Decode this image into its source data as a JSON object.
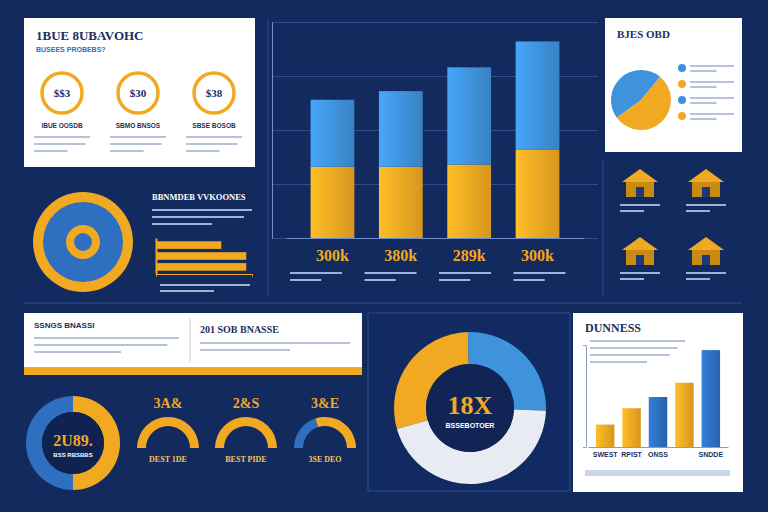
{
  "chart_data": [
    {
      "type": "bar",
      "stacked": true,
      "categories": [
        "300k",
        "380k",
        "289k",
        "300k"
      ],
      "series": [
        {
          "color": "#f2a922",
          "values": [
            33,
            33,
            34,
            41
          ]
        },
        {
          "color": "#3f93dd",
          "values": [
            31,
            35,
            45,
            50
          ]
        }
      ],
      "ylim": [
        0,
        100
      ],
      "yticks": [
        0,
        25,
        50,
        75,
        100
      ],
      "grid": true,
      "tick_labels": "x"
    },
    {
      "type": "bar",
      "orientation": "horizontal",
      "categories": [
        null,
        null,
        null
      ],
      "values": [
        68,
        94,
        94
      ],
      "color": "#f2a922",
      "xlim": [
        0,
        100
      ],
      "xticks": [
        0,
        100
      ],
      "tick_labels": false
    },
    {
      "type": "pie",
      "title": "BJES OBD",
      "values": [
        46,
        54
      ],
      "colors": [
        "#3f93dd",
        "#f2a922"
      ]
    },
    {
      "type": "pie",
      "title": "2U89.",
      "subtitle": "BSS RBSBBS",
      "values": [
        50,
        50
      ],
      "colors": [
        "#f2a922",
        "#2f6fc0"
      ]
    },
    {
      "type": "gauge",
      "title": "3A&",
      "subtitle": "DEST 1DE",
      "values": [
        100
      ],
      "colors": [
        "#f2a922"
      ],
      "ylim": [
        0,
        100
      ]
    },
    {
      "type": "gauge",
      "title": "2&S",
      "subtitle": "BEST PIDE",
      "values": [
        100
      ],
      "colors": [
        "#f2a922"
      ],
      "ylim": [
        0,
        100
      ]
    },
    {
      "type": "gauge",
      "title": "3&E",
      "subtitle": "3SE DEO",
      "values": [
        40,
        60
      ],
      "colors": [
        "#2f6fc0",
        "#f2a922"
      ],
      "ylim": [
        0,
        100
      ]
    },
    {
      "type": "pie",
      "title": "18X",
      "subtitle": "BSSEBOTOER",
      "values": [
        29,
        26,
        45
      ],
      "colors": [
        "#f2a922",
        "#3f93dd",
        "#e8ecf2"
      ]
    },
    {
      "type": "bar",
      "title": "DUNNESS",
      "categories": [
        "SWEST",
        "RPIST",
        "ONSS",
        null,
        "SNDDE"
      ],
      "values": [
        22,
        38,
        49,
        63,
        95
      ],
      "colors": [
        "#f2a922",
        "#f2a922",
        "#2f6fc0",
        "#f2a922",
        "#2f6fc0"
      ],
      "ylim": [
        0,
        100
      ],
      "yticks": [
        0,
        100
      ],
      "tick_labels": "x"
    }
  ],
  "panels": {
    "summary": {
      "title": "1BUE 8UBAVOHC",
      "subtitle": "BUSEES PROBEBS?",
      "rings": [
        {
          "text": "$$3",
          "label": "IBUE OOSDB"
        },
        {
          "text": "$30",
          "label": "SBMO BNSOS"
        },
        {
          "text": "$38",
          "label": "SBSE BOSOB"
        }
      ]
    },
    "note": {
      "title": "BBNMDEB VVKOONES"
    },
    "banner": {
      "left": "SSNGS BNASSI",
      "right": "201 SOB BNASSE"
    }
  }
}
